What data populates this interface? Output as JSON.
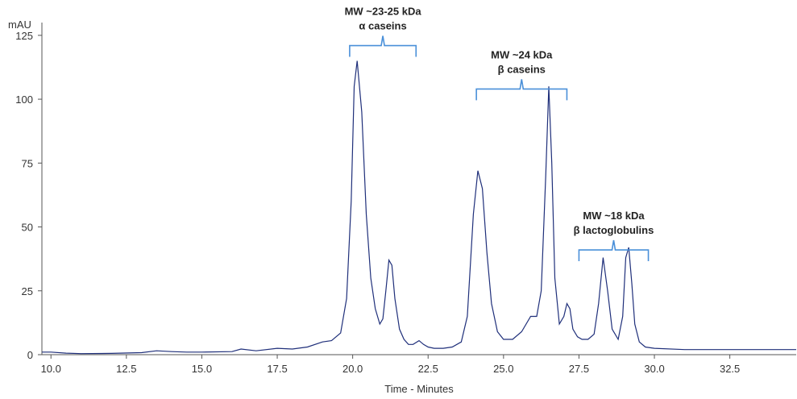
{
  "chart_data": {
    "type": "line",
    "title": "",
    "xlabel": "Time - Minutes",
    "ylabel": "mAU",
    "xlim": [
      9.7,
      34.7
    ],
    "ylim": [
      0,
      130
    ],
    "x_ticks": [
      "10.0",
      "12.5",
      "15.0",
      "17.5",
      "20.0",
      "22.5",
      "25.0",
      "27.5",
      "30.0",
      "32.5"
    ],
    "y_ticks": [
      "0",
      "25",
      "50",
      "75",
      "100",
      "125"
    ],
    "grid": false,
    "legend": "none",
    "colors": {
      "line": "#1f2f7a",
      "bracket": "#4a90d9"
    },
    "series": [
      {
        "x": [
          9.7,
          10.0,
          10.5,
          11.0,
          12.0,
          13.0,
          13.5,
          14.0,
          14.5,
          15.0,
          16.0,
          16.3,
          16.8,
          17.5,
          18.0,
          18.5,
          19.0,
          19.3,
          19.6,
          19.8,
          19.95,
          20.05,
          20.15,
          20.3,
          20.45,
          20.6,
          20.75,
          20.9,
          21.0,
          21.1,
          21.2,
          21.3,
          21.4,
          21.55,
          21.7,
          21.85,
          22.0,
          22.2,
          22.35,
          22.5,
          22.7,
          23.0,
          23.3,
          23.6,
          23.8,
          24.0,
          24.15,
          24.3,
          24.45,
          24.6,
          24.8,
          25.0,
          25.3,
          25.6,
          25.9,
          26.1,
          26.25,
          26.4,
          26.5,
          26.6,
          26.7,
          26.85,
          27.0,
          27.1,
          27.2,
          27.3,
          27.45,
          27.6,
          27.8,
          28.0,
          28.15,
          28.3,
          28.45,
          28.6,
          28.8,
          28.95,
          29.05,
          29.15,
          29.25,
          29.35,
          29.5,
          29.7,
          30.0,
          31.0,
          32.0,
          33.0,
          34.7
        ],
        "y": [
          1,
          1,
          0.6,
          0.4,
          0.5,
          0.8,
          1.5,
          1.2,
          1.0,
          1.0,
          1.2,
          2.2,
          1.5,
          2.5,
          2.2,
          3.0,
          5.0,
          5.5,
          8.5,
          22,
          60,
          105,
          115,
          95,
          55,
          30,
          18,
          12,
          14,
          25,
          37,
          35,
          22,
          10,
          6,
          4,
          4,
          5.5,
          4,
          3,
          2.5,
          2.5,
          3,
          5,
          15,
          55,
          72,
          65,
          40,
          20,
          9,
          6,
          6,
          9,
          15,
          15,
          25,
          70,
          105,
          75,
          30,
          12,
          15,
          20,
          18,
          10,
          7,
          6,
          6,
          8,
          20,
          38,
          25,
          10,
          6,
          15,
          38,
          42,
          28,
          12,
          5,
          3,
          2.5,
          2,
          2,
          2,
          2
        ]
      }
    ],
    "annotations": [
      {
        "line1": "MW ~23-25 kDa",
        "line2": "α caseins",
        "x_start": 19.9,
        "x_end": 22.1,
        "level": 121
      },
      {
        "line1": "MW ~24 kDa",
        "line2": "β caseins",
        "x_start": 24.1,
        "x_end": 27.1,
        "level": 104
      },
      {
        "line1": "MW ~18 kDa",
        "line2": "β lactoglobulins",
        "x_start": 27.5,
        "x_end": 29.8,
        "level": 41
      }
    ]
  }
}
